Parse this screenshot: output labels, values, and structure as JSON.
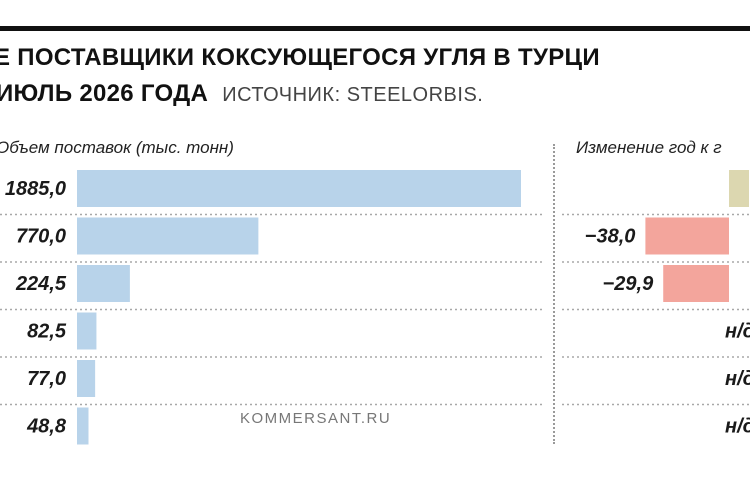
{
  "header": {
    "title_line1": "Е ПОСТАВЩИКИ КОКСУЮЩЕГОСЯ УГЛЯ В ТУРЦИ",
    "title_line2": "ИЮЛЬ 2026 ГОДА",
    "source": "ИСТОЧНИК: STEELORBIS.",
    "credit": "KOMMERSANT.RU"
  },
  "chart_data": {
    "type": "bar",
    "orientation": "horizontal",
    "series": [
      {
        "name": "Объем поставок (тыс. тонн)",
        "values": [
          1885.0,
          770.0,
          224.5,
          82.5,
          77.0,
          48.8
        ],
        "labels": [
          "1885,0",
          "770,0",
          "224,5",
          "82,5",
          "77,0",
          "48,8"
        ],
        "color": "#b8d3ea"
      },
      {
        "name": "Изменение год к г",
        "values": [
          null,
          -38.0,
          -29.9,
          null,
          null,
          null
        ],
        "labels": [
          "",
          "−38,0",
          "−29,9",
          "н/д",
          "н/д",
          "н/д"
        ],
        "colors": [
          "#dcd7b0",
          "#f3a59c",
          "#f3a59c",
          null,
          null,
          null
        ]
      }
    ],
    "grid": false
  }
}
